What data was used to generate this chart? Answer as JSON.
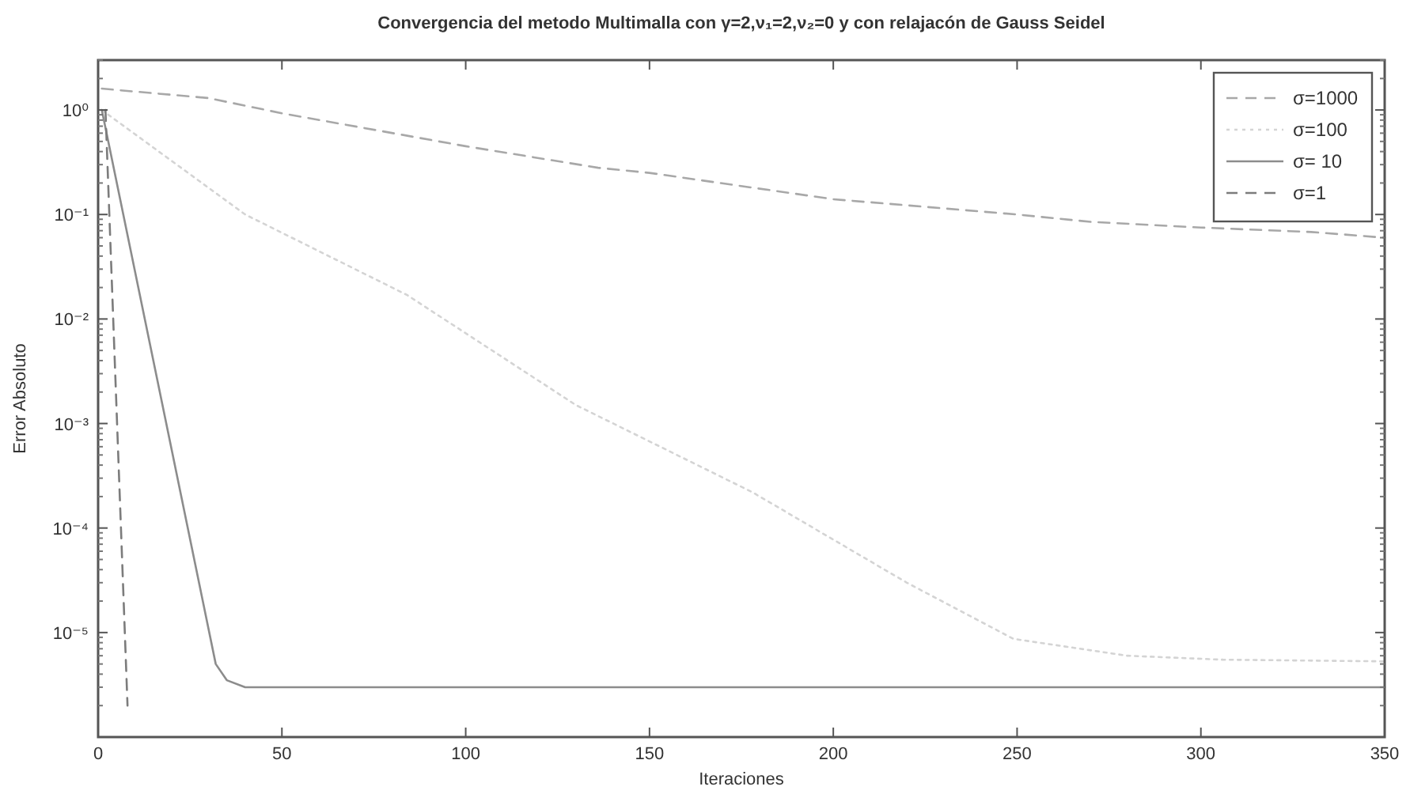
{
  "chart_data": {
    "type": "line",
    "title": "Convergencia del metodo Multimalla con γ=2,ν₁=2,ν₂=0 y con relajacón de Gauss Seidel",
    "xlabel": "Iteraciones",
    "ylabel": "Error Absoluto",
    "log": "y",
    "legend": "top right",
    "xlim": [
      0,
      350
    ],
    "xticks": [
      0,
      50,
      100,
      150,
      200,
      250,
      300,
      350
    ],
    "ylim": [
      1e-06,
      3
    ],
    "yticks": [
      {
        "value": 1,
        "label": "10⁰"
      },
      {
        "value": 0.1,
        "label": "10⁻¹"
      },
      {
        "value": 0.01,
        "label": "10⁻²"
      },
      {
        "value": 0.001,
        "label": "10⁻³"
      },
      {
        "value": 0.0001,
        "label": "10⁻⁴"
      },
      {
        "value": 1e-05,
        "label": "10⁻⁵"
      }
    ],
    "series": [
      {
        "name": "σ=1000",
        "color": "#a8a8a8",
        "line_style": "dashed",
        "x": [
          1,
          30,
          50,
          100,
          136,
          150,
          200,
          250,
          270,
          300,
          330,
          350
        ],
        "values": [
          1.6,
          1.3,
          0.93,
          0.45,
          0.28,
          0.25,
          0.14,
          0.1,
          0.085,
          0.075,
          0.068,
          0.06
        ]
      },
      {
        "name": "σ=100",
        "color": "#d4d4d4",
        "line_style": "dotted",
        "x": [
          1,
          40,
          84,
          130,
          178,
          220,
          249,
          280,
          306,
          350
        ],
        "values": [
          1,
          0.1,
          0.017,
          0.0015,
          0.00022,
          3e-05,
          8.7e-06,
          6e-06,
          5.5e-06,
          5.3e-06
        ]
      },
      {
        "name": "σ= 10",
        "color": "#8c8c8c",
        "line_style": "solid",
        "x": [
          1,
          32,
          35,
          40,
          350
        ],
        "values": [
          1,
          5e-06,
          3.5e-06,
          3e-06,
          3e-06
        ]
      },
      {
        "name": "σ=1",
        "color": "#7c7c7c",
        "line_style": "dashed",
        "x": [
          2,
          8
        ],
        "values": [
          1,
          2e-06
        ]
      }
    ]
  }
}
